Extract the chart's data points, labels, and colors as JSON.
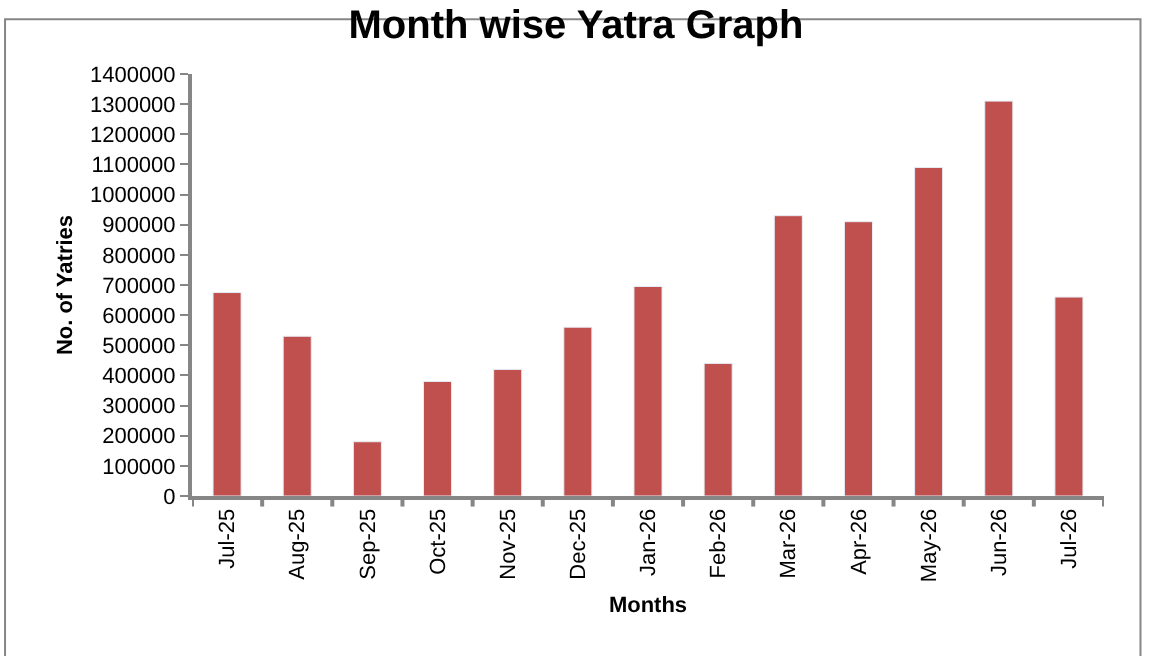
{
  "chart_data": {
    "type": "bar",
    "title": "Month wise Yatra Graph",
    "xlabel": "Months",
    "ylabel": "No. of Yatries",
    "categories": [
      "Jul-25",
      "Aug-25",
      "Sep-25",
      "Oct-25",
      "Nov-25",
      "Dec-25",
      "Jan-26",
      "Feb-26",
      "Mar-26",
      "Apr-26",
      "May-26",
      "Jun-26",
      "Jul-26"
    ],
    "values": [
      675000,
      530000,
      180000,
      380000,
      420000,
      560000,
      695000,
      440000,
      930000,
      910000,
      1090000,
      1310000,
      660000
    ],
    "color": "#c0504d",
    "ylim": [
      0,
      1400000
    ],
    "yticks": [
      0,
      100000,
      200000,
      300000,
      400000,
      500000,
      600000,
      700000,
      800000,
      900000,
      1000000,
      1100000,
      1200000,
      1300000,
      1400000
    ],
    "grid": false,
    "legend": false
  }
}
